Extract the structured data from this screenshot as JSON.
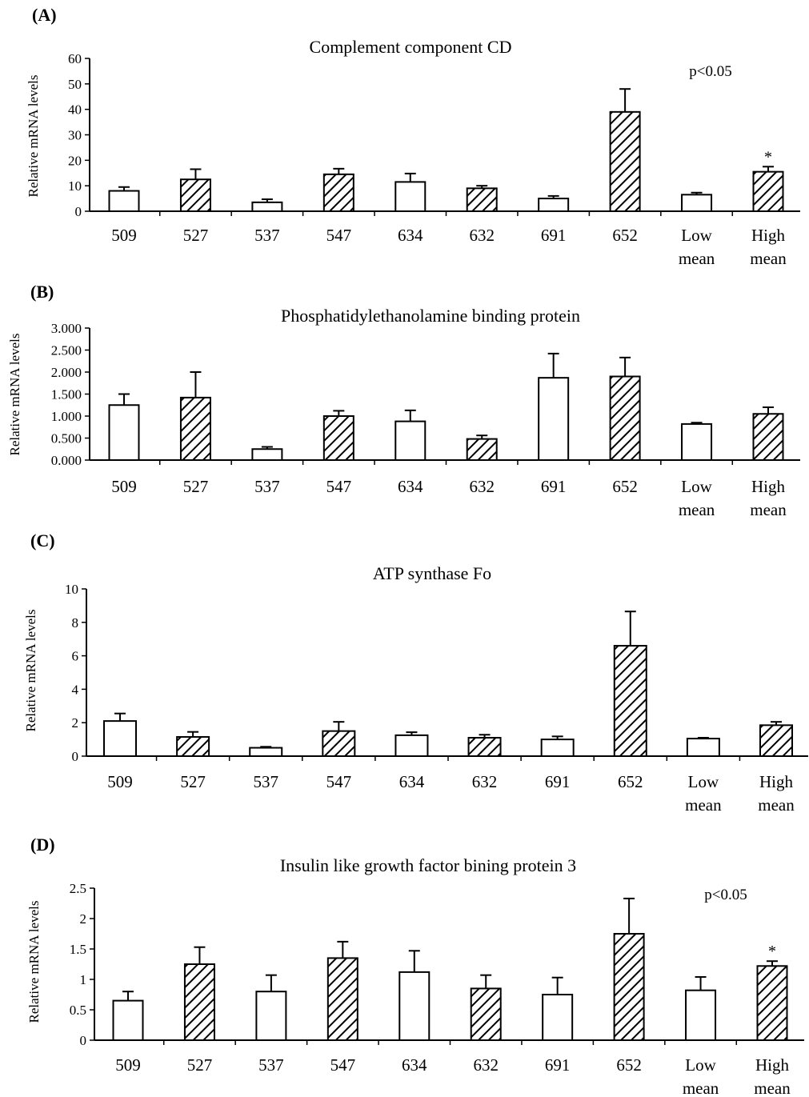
{
  "chart_data": [
    {
      "type": "bar",
      "panel": "(A)",
      "title": "Complement component CD",
      "ylabel": "Relative mRNA levels",
      "ylim": [
        0,
        60
      ],
      "yticks": [
        "0",
        "10",
        "20",
        "30",
        "40",
        "50",
        "60"
      ],
      "annotation": "p<0.05",
      "categories": [
        [
          "509"
        ],
        [
          "527"
        ],
        [
          "537"
        ],
        [
          "547"
        ],
        [
          "634"
        ],
        [
          "632"
        ],
        [
          "691"
        ],
        [
          "652"
        ],
        [
          "Low",
          "mean"
        ],
        [
          "High",
          "mean"
        ]
      ],
      "values": [
        8,
        12.5,
        3.5,
        14.5,
        11.5,
        9,
        5,
        39,
        6.5,
        15.5
      ],
      "errors": [
        1.5,
        4,
        1.2,
        2.2,
        3.3,
        1,
        1,
        9,
        0.8,
        2
      ],
      "hatched": [
        false,
        true,
        false,
        true,
        false,
        true,
        false,
        true,
        false,
        true
      ],
      "markers": [
        "",
        "",
        "",
        "",
        "",
        "",
        "",
        "",
        "",
        "*"
      ]
    },
    {
      "type": "bar",
      "panel": "(B)",
      "title": "Phosphatidylethanolamine binding protein",
      "ylabel": "Relative mRNA levels",
      "ylim": [
        0,
        3
      ],
      "yticks": [
        "0.000",
        "0.500",
        "1.000",
        "1.500",
        "2.000",
        "2.500",
        "3.000"
      ],
      "annotation": "",
      "categories": [
        [
          "509"
        ],
        [
          "527"
        ],
        [
          "537"
        ],
        [
          "547"
        ],
        [
          "634"
        ],
        [
          "632"
        ],
        [
          "691"
        ],
        [
          "652"
        ],
        [
          "Low",
          "mean"
        ],
        [
          "High",
          "mean"
        ]
      ],
      "values": [
        1.25,
        1.42,
        0.25,
        1.0,
        0.88,
        0.48,
        1.87,
        1.9,
        0.82,
        1.05
      ],
      "errors": [
        0.25,
        0.58,
        0.05,
        0.12,
        0.25,
        0.08,
        0.55,
        0.43,
        0.03,
        0.15
      ],
      "hatched": [
        false,
        true,
        false,
        true,
        false,
        true,
        false,
        true,
        false,
        true
      ],
      "markers": [
        "",
        "",
        "",
        "",
        "",
        "",
        "",
        "",
        "",
        ""
      ]
    },
    {
      "type": "bar",
      "panel": "(C)",
      "title": "ATP synthase Fo",
      "ylabel": "Relative mRNA levels",
      "ylim": [
        0,
        10
      ],
      "yticks": [
        "0",
        "2",
        "4",
        "6",
        "8",
        "10"
      ],
      "annotation": "",
      "categories": [
        [
          "509"
        ],
        [
          "527"
        ],
        [
          "537"
        ],
        [
          "547"
        ],
        [
          "634"
        ],
        [
          "632"
        ],
        [
          "691"
        ],
        [
          "652"
        ],
        [
          "Low",
          "mean"
        ],
        [
          "High",
          "mean"
        ]
      ],
      "values": [
        2.1,
        1.15,
        0.5,
        1.5,
        1.25,
        1.1,
        1.0,
        6.6,
        1.05,
        1.85
      ],
      "errors": [
        0.45,
        0.3,
        0.06,
        0.55,
        0.18,
        0.18,
        0.18,
        2.05,
        0.05,
        0.2
      ],
      "hatched": [
        false,
        true,
        false,
        true,
        false,
        true,
        false,
        true,
        false,
        true
      ],
      "markers": [
        "",
        "",
        "",
        "",
        "",
        "",
        "",
        "",
        "",
        ""
      ]
    },
    {
      "type": "bar",
      "panel": "(D)",
      "title": "Insulin like growth factor bining protein 3",
      "ylabel": "Relative mRNA levels",
      "ylim": [
        0,
        2.5
      ],
      "yticks": [
        "0",
        "0.5",
        "1",
        "1.5",
        "2",
        "2.5"
      ],
      "annotation": "p<0.05",
      "categories": [
        [
          "509"
        ],
        [
          "527"
        ],
        [
          "537"
        ],
        [
          "547"
        ],
        [
          "634"
        ],
        [
          "632"
        ],
        [
          "691"
        ],
        [
          "652"
        ],
        [
          "Low",
          "mean"
        ],
        [
          "High",
          "mean"
        ]
      ],
      "values": [
        0.65,
        1.25,
        0.8,
        1.35,
        1.12,
        0.85,
        0.75,
        1.75,
        0.82,
        1.22
      ],
      "errors": [
        0.15,
        0.28,
        0.27,
        0.27,
        0.35,
        0.22,
        0.28,
        0.58,
        0.22,
        0.08
      ],
      "hatched": [
        false,
        true,
        false,
        true,
        false,
        true,
        false,
        true,
        false,
        true
      ],
      "markers": [
        "",
        "",
        "",
        "",
        "",
        "",
        "",
        "",
        "",
        "*"
      ]
    }
  ]
}
